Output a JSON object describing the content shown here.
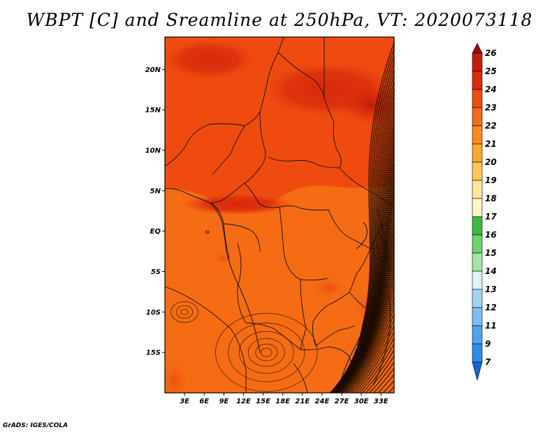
{
  "title": "WBPT [C] and Sreamline at 250hPa, VT: 2020073118",
  "credit": "GrADS: IGES/COLA",
  "map": {
    "lon_range": [
      0,
      35
    ],
    "lat_range": [
      -20,
      24
    ],
    "lat_ticks": [
      {
        "value": 20,
        "label": "20N"
      },
      {
        "value": 15,
        "label": "15N"
      },
      {
        "value": 10,
        "label": "10N"
      },
      {
        "value": 5,
        "label": "5N"
      },
      {
        "value": 0,
        "label": "EQ"
      },
      {
        "value": -5,
        "label": "5S"
      },
      {
        "value": -10,
        "label": "10S"
      },
      {
        "value": -15,
        "label": "15S"
      }
    ],
    "lon_ticks": [
      {
        "value": 3,
        "label": "3E"
      },
      {
        "value": 6,
        "label": "6E"
      },
      {
        "value": 9,
        "label": "9E"
      },
      {
        "value": 12,
        "label": "12E"
      },
      {
        "value": 15,
        "label": "15E"
      },
      {
        "value": 18,
        "label": "18E"
      },
      {
        "value": 21,
        "label": "21E"
      },
      {
        "value": 24,
        "label": "24E"
      },
      {
        "value": 27,
        "label": "27E"
      },
      {
        "value": 30,
        "label": "30E"
      },
      {
        "value": 33,
        "label": "33E"
      }
    ],
    "fill_colors": {
      "t22": "#f56c14",
      "t23": "#ef4b10",
      "t24": "#d9290c",
      "t25": "#c01a08"
    },
    "vortices": [
      {
        "name": "cyclonic-circulation",
        "lon": 15.5,
        "lat": -15.0
      },
      {
        "name": "west-circulation",
        "lon": 3.0,
        "lat": -10.0
      }
    ]
  },
  "colorbar": {
    "labels": [
      "26",
      "25",
      "24",
      "23",
      "22",
      "21",
      "20",
      "19",
      "18",
      "17",
      "16",
      "15",
      "14",
      "13",
      "12",
      "11",
      "9",
      "7"
    ],
    "colors": [
      "#a50c04",
      "#c41a08",
      "#dc2c0c",
      "#f04c10",
      "#f56c14",
      "#fb8c18",
      "#fcaa28",
      "#fcc854",
      "#fce698",
      "#fcf8c4",
      "#3cbc3c",
      "#6cd46c",
      "#a4e4a4",
      "#dcf4f4",
      "#a4d4f4",
      "#7cbcf4",
      "#4ca4f0",
      "#2c8cec",
      "#1464dc"
    ]
  }
}
